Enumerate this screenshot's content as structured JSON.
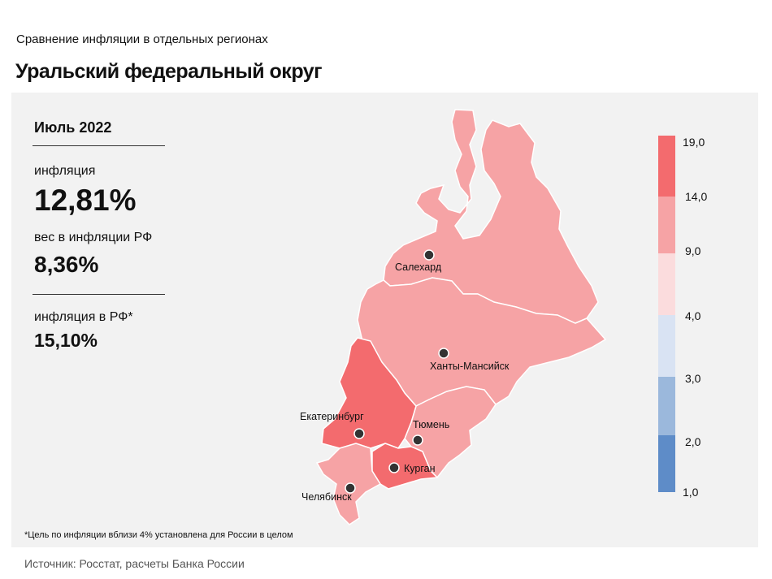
{
  "header": {
    "subtitle": "Сравнение  инфляции  в отдельных  регионах",
    "title": "Уральский федеральный округ"
  },
  "stats": {
    "period": "Июль 2022",
    "inflation_label": "инфляция",
    "inflation_value": "12,81%",
    "weight_label": "вес в инфляции  РФ",
    "weight_value": "8,36%",
    "rf_label": "инфляция  в РФ*",
    "rf_value": "15,10%"
  },
  "footnote": "*Цель по инфляции вблизи 4% установлена для России в целом",
  "source": "Источник: Росстат, расчеты Банка России",
  "map": {
    "cities": [
      "Салехард",
      "Ханты-Мансийск",
      "Екатеринбург",
      "Тюмень",
      "Курган",
      "Челябинск"
    ],
    "region_colors": {
      "yamal": "#f6a3a5",
      "khmao": "#f6a3a5",
      "tyumen": "#f6a3a5",
      "chelyabinsk": "#f6a3a5",
      "sverdlovsk": "#f36b6e",
      "kurgan": "#f36b6e"
    }
  },
  "legend": {
    "ticks": [
      "19,0",
      "14,0",
      "9,0",
      "4,0",
      "3,0",
      "2,0",
      "1,0"
    ],
    "bands": [
      {
        "from": "14,0",
        "to": "19,0",
        "color": "#f36b6e"
      },
      {
        "from": "9,0",
        "to": "14,0",
        "color": "#f6a3a5"
      },
      {
        "from": "4,0",
        "to": "9,0",
        "color": "#fbdcdd"
      },
      {
        "from": "3,0",
        "to": "4,0",
        "color": "#d9e3f3"
      },
      {
        "from": "2,0",
        "to": "3,0",
        "color": "#9bb8dc"
      },
      {
        "from": "1,0",
        "to": "2,0",
        "color": "#5e8cc8"
      }
    ]
  }
}
